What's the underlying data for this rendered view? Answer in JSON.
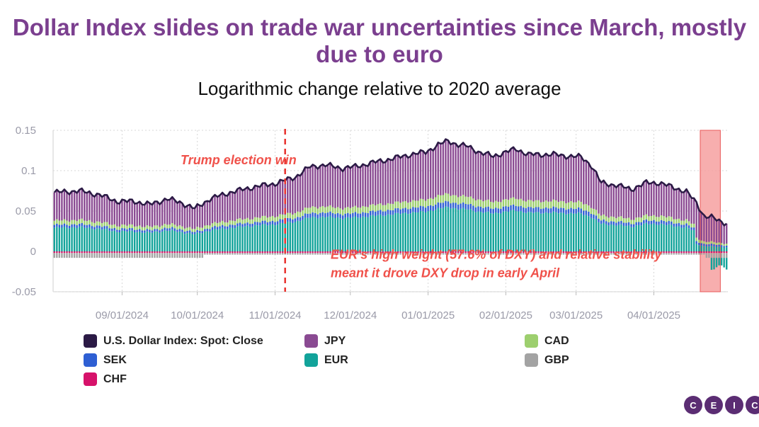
{
  "title": "Dollar Index slides on trade war uncertainties since March, mostly due to euro",
  "subtitle": "Logarithmic change relative to 2020 average",
  "annotations": {
    "election": "Trump election win",
    "euro_line1": "EUR's high weight (57.6% of DXY) and relative stability",
    "euro_line2": "meant it drove DXY drop in early April"
  },
  "legend": [
    {
      "label": "U.S. Dollar Index: Spot: Close",
      "color": "#2b1a45",
      "key": "dxy"
    },
    {
      "label": "JPY",
      "color": "#8a4a92",
      "key": "jpy"
    },
    {
      "label": "CAD",
      "color": "#9dcf6e",
      "key": "cad"
    },
    {
      "label": "SEK",
      "color": "#2e5fd3",
      "key": "sek"
    },
    {
      "label": "EUR",
      "color": "#12a39a",
      "key": "eur"
    },
    {
      "label": "GBP",
      "color": "#a3a3a3",
      "key": "gbp"
    },
    {
      "label": "CHF",
      "color": "#d6126a",
      "key": "chf"
    }
  ],
  "logo": [
    "C",
    "E",
    "I",
    "C"
  ],
  "chart_data": {
    "type": "bar",
    "stacked": true,
    "overlay_line": "U.S. Dollar Index: Spot: Close",
    "x_start": "2024-08-05",
    "frequency": "business days",
    "ylim": [
      -0.05,
      0.15
    ],
    "yticks": [
      "0.15",
      "0.1",
      "0.05",
      "0",
      "-0.05"
    ],
    "ytick_values": [
      0.15,
      0.1,
      0.05,
      0,
      -0.05
    ],
    "xticks": [
      "09/01/2024",
      "10/01/2024",
      "11/01/2024",
      "12/01/2024",
      "01/01/2025",
      "02/01/2025",
      "03/01/2025",
      "04/01/2025"
    ],
    "xtick_days": [
      27,
      57,
      88,
      118,
      149,
      180,
      208,
      239
    ],
    "total_days": 269,
    "election_day": 92,
    "highlight_days": [
      258,
      265
    ],
    "dxy_keypoints": [
      [
        0,
        0.073
      ],
      [
        10,
        0.075
      ],
      [
        18,
        0.07
      ],
      [
        25,
        0.062
      ],
      [
        32,
        0.062
      ],
      [
        38,
        0.058
      ],
      [
        45,
        0.065
      ],
      [
        50,
        0.061
      ],
      [
        56,
        0.053
      ],
      [
        62,
        0.065
      ],
      [
        70,
        0.073
      ],
      [
        80,
        0.08
      ],
      [
        88,
        0.084
      ],
      [
        92,
        0.088
      ],
      [
        96,
        0.092
      ],
      [
        102,
        0.105
      ],
      [
        108,
        0.107
      ],
      [
        115,
        0.103
      ],
      [
        120,
        0.105
      ],
      [
        127,
        0.11
      ],
      [
        135,
        0.115
      ],
      [
        142,
        0.12
      ],
      [
        148,
        0.123
      ],
      [
        153,
        0.132
      ],
      [
        157,
        0.137
      ],
      [
        161,
        0.132
      ],
      [
        165,
        0.13
      ],
      [
        170,
        0.122
      ],
      [
        175,
        0.118
      ],
      [
        180,
        0.123
      ],
      [
        184,
        0.127
      ],
      [
        189,
        0.12
      ],
      [
        194,
        0.12
      ],
      [
        199,
        0.12
      ],
      [
        205,
        0.118
      ],
      [
        210,
        0.117
      ],
      [
        214,
        0.107
      ],
      [
        218,
        0.085
      ],
      [
        224,
        0.082
      ],
      [
        230,
        0.077
      ],
      [
        236,
        0.085
      ],
      [
        241,
        0.085
      ],
      [
        246,
        0.08
      ],
      [
        249,
        0.077
      ],
      [
        252,
        0.074
      ],
      [
        256,
        0.06
      ],
      [
        259,
        0.044
      ],
      [
        262,
        0.042
      ],
      [
        265,
        0.038
      ],
      [
        268,
        0.035
      ]
    ],
    "shares": {
      "eur": 0.4,
      "sek": 0.05,
      "cad": 0.07,
      "jpy": 0.48
    },
    "negatives": {
      "gbp": -0.006,
      "chf": -0.002
    },
    "highlight_label_days": [
      258,
      265
    ]
  }
}
